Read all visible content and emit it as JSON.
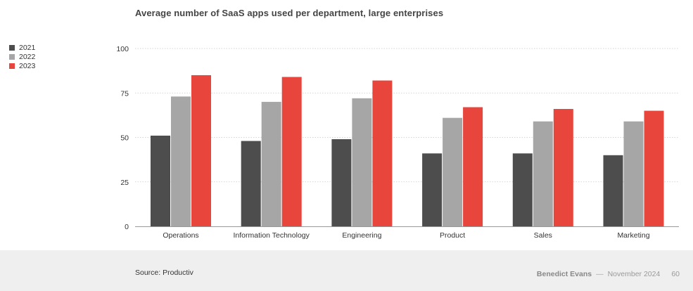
{
  "chart_data": {
    "type": "bar",
    "title": "Average number of SaaS apps used per department, large enterprises",
    "xlabel": "",
    "ylabel": "",
    "ylim": [
      0,
      100
    ],
    "yticks": [
      0,
      25,
      50,
      75,
      100
    ],
    "grid": true,
    "legend_placement": "left",
    "categories": [
      "Operations",
      "Information Technology",
      "Engineering",
      "Product",
      "Sales",
      "Marketing"
    ],
    "series": [
      {
        "name": "2021",
        "color": "#4d4d4d",
        "values": [
          51,
          48,
          49,
          41,
          41,
          40
        ]
      },
      {
        "name": "2022",
        "color": "#a6a6a6",
        "values": [
          73,
          70,
          72,
          61,
          59,
          59
        ]
      },
      {
        "name": "2023",
        "color": "#e8453c",
        "values": [
          85,
          84,
          82,
          67,
          66,
          65
        ]
      }
    ]
  },
  "footer": {
    "source": "Source: Productiv",
    "author": "Benedict Evans",
    "separator": "—",
    "date": "November 2024",
    "page": "60"
  }
}
